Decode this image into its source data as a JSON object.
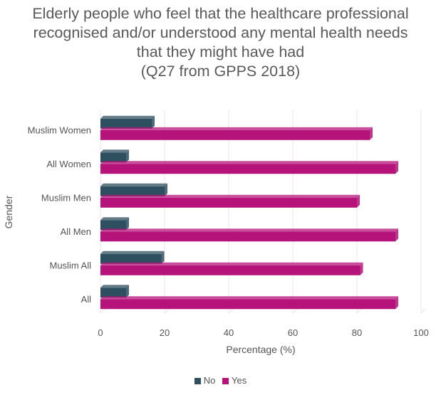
{
  "chart_data": {
    "type": "bar",
    "orientation": "horizontal",
    "title_lines": [
      "Elderly people who feel that the healthcare professional",
      "recognised and/or understood any mental health needs",
      "that they might have had",
      "(Q27 from GPPS 2018)"
    ],
    "xlabel": "Percentage (%)",
    "ylabel": "Gender",
    "xlim": [
      0,
      100
    ],
    "xticks": [
      0,
      20,
      40,
      60,
      80,
      100
    ],
    "grid": true,
    "legend_position": "bottom",
    "categories": [
      "Muslim Women",
      "All Women",
      "Muslim Men",
      "All Men",
      "Muslim All",
      "All"
    ],
    "series": [
      {
        "name": "No",
        "color": "#2e4f5f",
        "values": [
          16,
          8,
          20,
          8,
          19,
          8
        ]
      },
      {
        "name": "Yes",
        "color": "#b5127a",
        "values": [
          84,
          92,
          80,
          92,
          81,
          92
        ]
      }
    ]
  }
}
